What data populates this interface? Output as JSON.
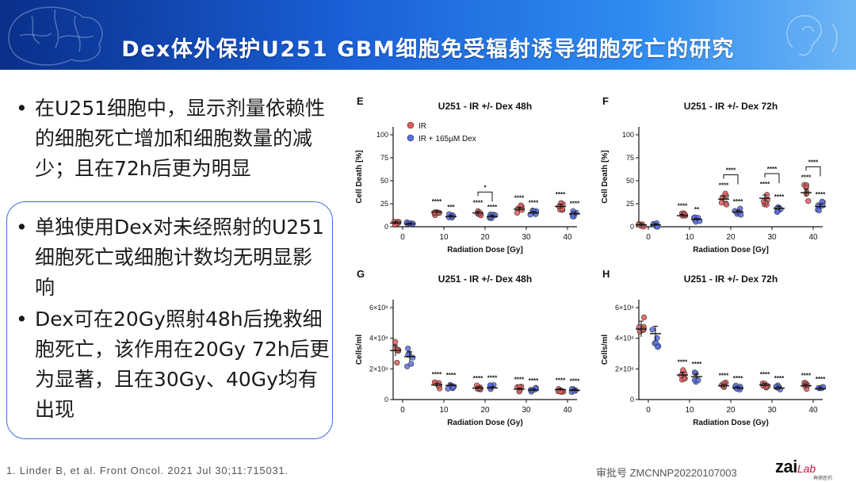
{
  "header": {
    "title": "Dex体外保护U251 GBM细胞免受辐射诱导细胞死亡的研究"
  },
  "bullets_top": [
    "在U251细胞中，显示剂量依赖性的细胞死亡增加和细胞数量的减少；且在72h后更为明显"
  ],
  "bullets_box": [
    "单独使用Dex对未经照射的U251细胞死亡或细胞计数均无明显影响",
    "Dex可在20Gy照射48h后挽救细胞死亡，该作用在20Gy 72h后更为显著，且在30Gy、40Gy均有出现"
  ],
  "bullet_symbol": "•",
  "colors": {
    "ir": "#e05a5a",
    "dex": "#5a6fe6",
    "accent": "#1a5fd6"
  },
  "chart_data": [
    {
      "panel": "E",
      "type": "scatter",
      "title": "U251 - IR +/- Dex 48h",
      "xlabel": "Radiation Dose [Gy]",
      "ylabel": "Cell Death [%]",
      "categories": [
        "0",
        "10",
        "20",
        "30",
        "40"
      ],
      "yticks": [
        "0",
        "25",
        "50",
        "75",
        "100"
      ],
      "ylim": [
        0,
        100
      ],
      "legend": [
        "IR",
        "IR + 165µM Dex"
      ],
      "series": [
        {
          "name": "IR",
          "means": [
            4,
            16,
            15,
            19,
            22
          ]
        },
        {
          "name": "IR + 165µM Dex",
          "means": [
            3,
            11,
            11,
            15,
            14
          ]
        }
      ],
      "sig_ir": [
        "",
        "****",
        "****",
        "****",
        "****"
      ],
      "sig_dex": [
        "",
        "***",
        "****",
        "****",
        "****"
      ],
      "brackets": [
        {
          "category": "20",
          "label": "*"
        }
      ]
    },
    {
      "panel": "F",
      "type": "scatter",
      "title": "U251 - IR +/- Dex 72h",
      "xlabel": "Radiation Dose [Gy]",
      "ylabel": "Cell Death [%]",
      "categories": [
        "0",
        "10",
        "20",
        "30",
        "40"
      ],
      "yticks": [
        "0",
        "25",
        "50",
        "75",
        "100"
      ],
      "ylim": [
        0,
        100
      ],
      "series": [
        {
          "name": "IR",
          "means": [
            2,
            12,
            30,
            31,
            37
          ]
        },
        {
          "name": "IR + 165µM Dex",
          "means": [
            2,
            8,
            16,
            20,
            22
          ]
        }
      ],
      "sig_ir": [
        "",
        "****",
        "****",
        "****",
        "****"
      ],
      "sig_dex": [
        "",
        "**",
        "****",
        "****",
        "****"
      ],
      "brackets": [
        {
          "category": "20",
          "label": "****"
        },
        {
          "category": "30",
          "label": "****"
        },
        {
          "category": "40",
          "label": "****"
        }
      ]
    },
    {
      "panel": "G",
      "type": "scatter",
      "title": "U251 - IR +/- Dex 48h",
      "xlabel": "Radiation Dose (Gy)",
      "ylabel": "Cells/ml",
      "categories": [
        "0",
        "10",
        "20",
        "30",
        "40"
      ],
      "yticks": [
        "0",
        "2×10⁶",
        "4×10⁶",
        "6×10⁶"
      ],
      "ylim": [
        0,
        6000000
      ],
      "series": [
        {
          "name": "IR",
          "means": [
            3200000,
            950000,
            750000,
            680000,
            650000
          ]
        },
        {
          "name": "IR + 165µM Dex",
          "means": [
            2800000,
            920000,
            760000,
            620000,
            600000
          ]
        }
      ],
      "sig_ir": [
        "",
        "****",
        "****",
        "****",
        "****"
      ],
      "sig_dex": [
        "",
        "****",
        "****",
        "****",
        "****"
      ]
    },
    {
      "panel": "H",
      "type": "scatter",
      "title": "U251 - IR +/- Dex 72h",
      "xlabel": "Radiation Dose (Gy)",
      "ylabel": "Cells/ml",
      "categories": [
        "0",
        "10",
        "20",
        "30",
        "40"
      ],
      "yticks": [
        "0",
        "2×10⁶",
        "4×10⁶",
        "6×10⁶"
      ],
      "ylim": [
        0,
        6000000
      ],
      "series": [
        {
          "name": "IR",
          "means": [
            4600000,
            1600000,
            900000,
            950000,
            900000
          ]
        },
        {
          "name": "IR + 165µM Dex",
          "means": [
            4300000,
            1500000,
            750000,
            750000,
            700000
          ]
        }
      ],
      "sig_ir": [
        "",
        "****",
        "****",
        "****",
        "****"
      ],
      "sig_dex": [
        "",
        "****",
        "****",
        "****",
        "****"
      ]
    }
  ],
  "footer": {
    "reference": "1. Linder B, et al. Front Oncol. 2021 Jul 30;11:715031.",
    "approval": "审批号 ZMCNNP20220107003"
  },
  "logo": {
    "main": "zai",
    "sub": "Lab",
    "cn": "再鼎医药"
  }
}
